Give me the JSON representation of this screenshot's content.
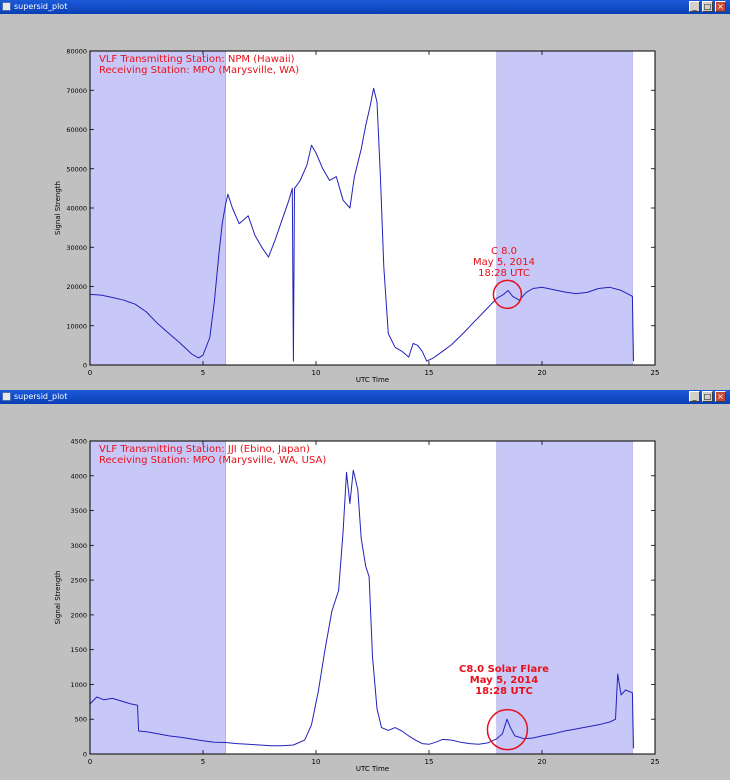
{
  "windows": [
    {
      "title": "supersid_plot",
      "minimize_label": "_",
      "maximize_label": "□",
      "close_label": "×"
    },
    {
      "title": "supersid_plot",
      "minimize_label": "_",
      "maximize_label": "□",
      "close_label": "×"
    }
  ],
  "colors": {
    "line": "#2222bb",
    "shade": "#c8c8f8",
    "annotation": "#e8101a",
    "plot_bg": "#ffffff",
    "window_bg": "#c0c0c0"
  },
  "chart_data": [
    {
      "type": "line",
      "title": "",
      "xlabel": "UTC Time",
      "ylabel": "Signal Strength",
      "xlim": [
        0,
        25
      ],
      "ylim": [
        0,
        80000
      ],
      "xticks": [
        0,
        5,
        10,
        15,
        20,
        25
      ],
      "yticks": [
        0,
        10000,
        20000,
        30000,
        40000,
        50000,
        60000,
        70000,
        80000
      ],
      "grid": false,
      "text_lines": [
        "VLF Transmitting Station: NPM (Hawaii)",
        "Receiving Station: MPO (Marysville, WA)"
      ],
      "shaded_ranges": [
        [
          0,
          6
        ],
        [
          18,
          24
        ]
      ],
      "annotation": {
        "lines": [
          "C 8.0",
          "May 5, 2014",
          "18:28 UTC"
        ],
        "x": 18.47,
        "y": 18000
      },
      "series": [
        {
          "points": [
            [
              0,
              18000
            ],
            [
              0.5,
              17800
            ],
            [
              1,
              17200
            ],
            [
              1.5,
              16500
            ],
            [
              2,
              15500
            ],
            [
              2.5,
              13500
            ],
            [
              3,
              10500
            ],
            [
              3.5,
              8000
            ],
            [
              4,
              5500
            ],
            [
              4.5,
              2800
            ],
            [
              4.8,
              1800
            ],
            [
              5.0,
              2500
            ],
            [
              5.3,
              7000
            ],
            [
              5.5,
              16000
            ],
            [
              5.7,
              28000
            ],
            [
              5.85,
              36000
            ],
            [
              6.0,
              41000
            ],
            [
              6.1,
              43500
            ],
            [
              6.3,
              40000
            ],
            [
              6.6,
              36000
            ],
            [
              7.0,
              38000
            ],
            [
              7.3,
              33000
            ],
            [
              7.6,
              30000
            ],
            [
              7.9,
              27500
            ],
            [
              8.2,
              32000
            ],
            [
              8.5,
              37000
            ],
            [
              8.8,
              42000
            ],
            [
              8.95,
              45000
            ],
            [
              9.0,
              1000
            ],
            [
              9.05,
              45000
            ],
            [
              9.3,
              47000
            ],
            [
              9.6,
              51000
            ],
            [
              9.8,
              56000
            ],
            [
              10.0,
              54000
            ],
            [
              10.3,
              50000
            ],
            [
              10.6,
              47000
            ],
            [
              10.9,
              48000
            ],
            [
              11.2,
              42000
            ],
            [
              11.5,
              40000
            ],
            [
              11.7,
              48000
            ],
            [
              12.0,
              55000
            ],
            [
              12.2,
              61000
            ],
            [
              12.4,
              66000
            ],
            [
              12.55,
              70500
            ],
            [
              12.7,
              67000
            ],
            [
              12.85,
              48000
            ],
            [
              13.0,
              25000
            ],
            [
              13.2,
              8000
            ],
            [
              13.5,
              4500
            ],
            [
              13.8,
              3500
            ],
            [
              14.1,
              2000
            ],
            [
              14.3,
              5500
            ],
            [
              14.5,
              5000
            ],
            [
              14.7,
              3500
            ],
            [
              14.9,
              1000
            ],
            [
              15.2,
              1800
            ],
            [
              15.6,
              3500
            ],
            [
              16.0,
              5200
            ],
            [
              16.5,
              8000
            ],
            [
              17.0,
              11000
            ],
            [
              17.5,
              14000
            ],
            [
              18.0,
              17000
            ],
            [
              18.3,
              18000
            ],
            [
              18.5,
              19000
            ],
            [
              18.7,
              17500
            ],
            [
              19.0,
              16500
            ],
            [
              19.3,
              18500
            ],
            [
              19.6,
              19500
            ],
            [
              20.0,
              19800
            ],
            [
              20.5,
              19200
            ],
            [
              21.0,
              18600
            ],
            [
              21.5,
              18200
            ],
            [
              22.0,
              18500
            ],
            [
              22.5,
              19500
            ],
            [
              23.0,
              19800
            ],
            [
              23.5,
              19000
            ],
            [
              24.0,
              17500
            ],
            [
              24.05,
              1000
            ]
          ]
        }
      ]
    },
    {
      "type": "line",
      "title": "",
      "xlabel": "UTC Time",
      "ylabel": "Signal Strength",
      "xlim": [
        0,
        25
      ],
      "ylim": [
        0,
        4500
      ],
      "xticks": [
        0,
        5,
        10,
        15,
        20,
        25
      ],
      "yticks": [
        0,
        500,
        1000,
        1500,
        2000,
        2500,
        3000,
        3500,
        4000,
        4500
      ],
      "grid": false,
      "text_lines": [
        "VLF Transmitting Station: JJI (Ebino, Japan)",
        "Receiving Station: MPO (Marysville, WA, USA)"
      ],
      "shaded_ranges": [
        [
          0,
          6
        ],
        [
          18,
          24
        ]
      ],
      "annotation": {
        "lines": [
          "C8.0 Solar Flare",
          "May 5, 2014",
          "18:28 UTC"
        ],
        "x": 18.47,
        "y": 350
      },
      "series": [
        {
          "points": [
            [
              0,
              720
            ],
            [
              0.3,
              820
            ],
            [
              0.6,
              780
            ],
            [
              1.0,
              800
            ],
            [
              1.4,
              760
            ],
            [
              1.8,
              720
            ],
            [
              2.1,
              700
            ],
            [
              2.15,
              330
            ],
            [
              2.5,
              320
            ],
            [
              3,
              290
            ],
            [
              3.5,
              260
            ],
            [
              4,
              240
            ],
            [
              4.5,
              215
            ],
            [
              5,
              190
            ],
            [
              5.5,
              170
            ],
            [
              6,
              165
            ],
            [
              6.5,
              150
            ],
            [
              7,
              140
            ],
            [
              7.5,
              130
            ],
            [
              8,
              120
            ],
            [
              8.5,
              120
            ],
            [
              9,
              130
            ],
            [
              9.5,
              200
            ],
            [
              9.8,
              420
            ],
            [
              10.1,
              900
            ],
            [
              10.4,
              1500
            ],
            [
              10.7,
              2050
            ],
            [
              11.0,
              2350
            ],
            [
              11.2,
              3200
            ],
            [
              11.35,
              4050
            ],
            [
              11.5,
              3600
            ],
            [
              11.65,
              4080
            ],
            [
              11.85,
              3800
            ],
            [
              12.0,
              3100
            ],
            [
              12.2,
              2700
            ],
            [
              12.35,
              2550
            ],
            [
              12.5,
              1400
            ],
            [
              12.7,
              650
            ],
            [
              12.9,
              380
            ],
            [
              13.2,
              340
            ],
            [
              13.5,
              380
            ],
            [
              13.8,
              330
            ],
            [
              14.1,
              260
            ],
            [
              14.4,
              200
            ],
            [
              14.7,
              150
            ],
            [
              15.0,
              140
            ],
            [
              15.3,
              170
            ],
            [
              15.6,
              210
            ],
            [
              16.0,
              200
            ],
            [
              16.4,
              170
            ],
            [
              16.8,
              150
            ],
            [
              17.2,
              140
            ],
            [
              17.6,
              160
            ],
            [
              18.0,
              220
            ],
            [
              18.25,
              290
            ],
            [
              18.45,
              500
            ],
            [
              18.6,
              380
            ],
            [
              18.8,
              260
            ],
            [
              19.2,
              220
            ],
            [
              19.6,
              230
            ],
            [
              20.0,
              260
            ],
            [
              20.5,
              290
            ],
            [
              21.0,
              330
            ],
            [
              21.5,
              360
            ],
            [
              22.0,
              390
            ],
            [
              22.5,
              420
            ],
            [
              23.0,
              460
            ],
            [
              23.25,
              500
            ],
            [
              23.35,
              1150
            ],
            [
              23.5,
              850
            ],
            [
              23.7,
              920
            ],
            [
              24.0,
              880
            ],
            [
              24.05,
              80
            ]
          ]
        }
      ]
    }
  ]
}
